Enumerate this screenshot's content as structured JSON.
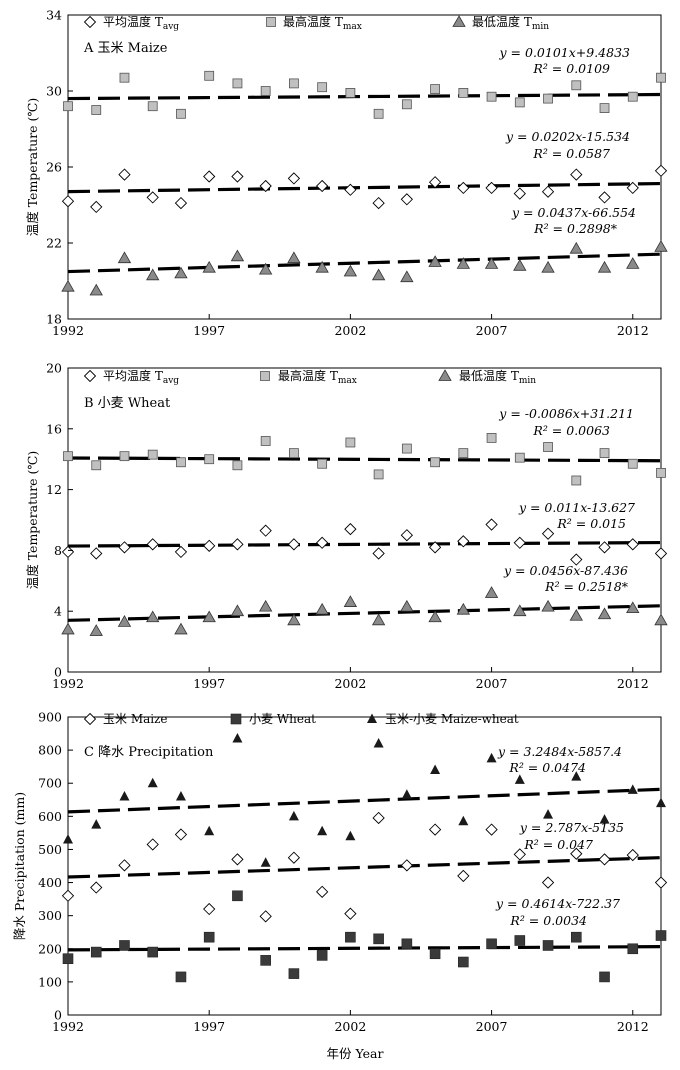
{
  "x_axis_title": "年份 Year",
  "panels": [
    {
      "label": "A  玉米 Maize",
      "ylabel": "温度 Temperature (℃)",
      "ylim": [
        18,
        34
      ],
      "yticks": [
        18,
        22,
        26,
        30,
        34
      ],
      "xlim": [
        1992,
        2013
      ],
      "xticks": [
        1992,
        1997,
        2002,
        2007,
        2012
      ],
      "legend": [
        {
          "text": "平均温度 T",
          "sub": "avg",
          "marker": "diamond"
        },
        {
          "text": "最高温度 T",
          "sub": "max",
          "marker": "square"
        },
        {
          "text": "最低温度 T",
          "sub": "min",
          "marker": "triangle"
        }
      ],
      "equations": [
        {
          "eq": "y = 0.0101x+9.4833",
          "r2": "R² = 0.0109"
        },
        {
          "eq": "y = 0.0202x-15.534",
          "r2": "R² = 0.0587"
        },
        {
          "eq": "y = 0.0437x-66.554",
          "r2": "R² = 0.2898*"
        }
      ]
    },
    {
      "label": "B  小麦 Wheat",
      "ylabel": "温度 Temperature (℃)",
      "ylim": [
        0,
        20
      ],
      "yticks": [
        0,
        4,
        8,
        12,
        16,
        20
      ],
      "xlim": [
        1992,
        2013
      ],
      "xticks": [
        1992,
        1997,
        2002,
        2007,
        2012
      ],
      "legend": [
        {
          "text": "平均温度 T",
          "sub": "avg",
          "marker": "diamond"
        },
        {
          "text": "最高温度 T",
          "sub": "max",
          "marker": "square"
        },
        {
          "text": "最低温度 T",
          "sub": "min",
          "marker": "triangle"
        }
      ],
      "equations": [
        {
          "eq": "y = -0.0086x+31.211",
          "r2": "R² = 0.0063"
        },
        {
          "eq": "y = 0.011x-13.627",
          "r2": "R² = 0.015"
        },
        {
          "eq": "y = 0.0456x-87.436",
          "r2": "R² = 0.2518*"
        }
      ]
    },
    {
      "label": "C  降水 Precipitation",
      "ylabel": "降水 Precipitation (mm)",
      "ylim": [
        0,
        900
      ],
      "yticks": [
        0,
        100,
        200,
        300,
        400,
        500,
        600,
        700,
        800,
        900
      ],
      "xlim": [
        1992,
        2013
      ],
      "xticks": [
        1992,
        1997,
        2002,
        2007,
        2012
      ],
      "legend": [
        {
          "text": "玉米 Maize",
          "sub": "",
          "marker": "diamond"
        },
        {
          "text": "小麦 Wheat",
          "sub": "",
          "marker": "darksquare"
        },
        {
          "text": "玉米-小麦 Maize-wheat",
          "sub": "",
          "marker": "darktriangle"
        }
      ],
      "equations": [
        {
          "eq": "y = 3.2484x-5857.4",
          "r2": "R² = 0.0474"
        },
        {
          "eq": "y = 2.787x-5135",
          "r2": "R² = 0.047"
        },
        {
          "eq": "y = 0.4614x-722.37",
          "r2": "R² = 0.0034"
        }
      ]
    }
  ],
  "chart_data": [
    {
      "type": "scatter",
      "title": "A  玉米 Maize",
      "xlabel": "",
      "ylabel": "温度 Temperature (℃)",
      "xlim": [
        1992,
        2013
      ],
      "ylim": [
        18,
        34
      ],
      "x": [
        1992,
        1993,
        1994,
        1995,
        1996,
        1997,
        1998,
        1999,
        2000,
        2001,
        2002,
        2003,
        2004,
        2005,
        2006,
        2007,
        2008,
        2009,
        2010,
        2011,
        2012,
        2013
      ],
      "series": [
        {
          "name": "最高温度 Tmax",
          "marker": "square",
          "values": [
            29.2,
            29.0,
            30.7,
            29.2,
            28.8,
            30.8,
            30.4,
            30.0,
            30.4,
            30.2,
            29.9,
            28.8,
            29.3,
            30.1,
            29.9,
            29.7,
            29.4,
            29.6,
            30.3,
            29.1,
            29.7,
            30.7
          ],
          "trend": [
            9.4833,
            0.0101
          ]
        },
        {
          "name": "平均温度 Tavg",
          "marker": "diamond",
          "values": [
            24.2,
            23.9,
            25.6,
            24.4,
            24.1,
            25.5,
            25.5,
            25.0,
            25.4,
            25.0,
            24.8,
            24.1,
            24.3,
            25.2,
            24.9,
            24.9,
            24.6,
            24.7,
            25.6,
            24.4,
            24.9,
            25.8
          ],
          "trend": [
            -15.534,
            0.0202
          ]
        },
        {
          "name": "最低温度 Tmin",
          "marker": "triangle",
          "values": [
            19.7,
            19.5,
            21.2,
            20.3,
            20.4,
            20.7,
            21.3,
            20.6,
            21.2,
            20.7,
            20.5,
            20.3,
            20.2,
            21.0,
            20.9,
            20.9,
            20.8,
            20.7,
            21.7,
            20.7,
            20.9,
            21.8
          ],
          "trend": [
            -66.554,
            0.0437
          ]
        }
      ]
    },
    {
      "type": "scatter",
      "title": "B  小麦 Wheat",
      "xlabel": "",
      "ylabel": "温度 Temperature (℃)",
      "xlim": [
        1992,
        2013
      ],
      "ylim": [
        0,
        20
      ],
      "x": [
        1992,
        1993,
        1994,
        1995,
        1996,
        1997,
        1998,
        1999,
        2000,
        2001,
        2002,
        2003,
        2004,
        2005,
        2006,
        2007,
        2008,
        2009,
        2010,
        2011,
        2012,
        2013
      ],
      "series": [
        {
          "name": "最高温度 Tmax",
          "marker": "square",
          "values": [
            14.2,
            13.6,
            14.2,
            14.3,
            13.8,
            14.0,
            13.6,
            15.2,
            14.4,
            13.7,
            15.1,
            13.0,
            14.7,
            13.8,
            14.4,
            15.4,
            14.1,
            14.8,
            12.6,
            14.4,
            13.7,
            13.1
          ],
          "trend": [
            31.211,
            -0.0086
          ]
        },
        {
          "name": "平均温度 Tavg",
          "marker": "diamond",
          "values": [
            7.9,
            7.8,
            8.2,
            8.4,
            7.9,
            8.3,
            8.4,
            9.3,
            8.4,
            8.5,
            9.4,
            7.8,
            9.0,
            8.2,
            8.6,
            9.7,
            8.5,
            9.1,
            7.4,
            8.2,
            8.4,
            7.8
          ],
          "trend": [
            -13.627,
            0.011
          ]
        },
        {
          "name": "最低温度 Tmin",
          "marker": "triangle",
          "values": [
            2.8,
            2.7,
            3.3,
            3.6,
            2.8,
            3.6,
            4.0,
            4.3,
            3.4,
            4.1,
            4.6,
            3.4,
            4.3,
            3.6,
            4.1,
            5.2,
            4.0,
            4.3,
            3.7,
            3.8,
            4.2,
            3.4
          ],
          "trend": [
            -87.436,
            0.0456
          ]
        }
      ]
    },
    {
      "type": "scatter",
      "title": "C  降水 Precipitation",
      "xlabel": "年份 Year",
      "ylabel": "降水 Precipitation (mm)",
      "xlim": [
        1992,
        2013
      ],
      "ylim": [
        0,
        900
      ],
      "x": [
        1992,
        1993,
        1994,
        1995,
        1996,
        1997,
        1998,
        1999,
        2000,
        2001,
        2002,
        2003,
        2004,
        2005,
        2006,
        2007,
        2008,
        2009,
        2010,
        2011,
        2012,
        2013
      ],
      "series": [
        {
          "name": "玉米 Maize",
          "marker": "diamond",
          "values": [
            360,
            385,
            452,
            515,
            545,
            320,
            470,
            298,
            475,
            372,
            306,
            595,
            452,
            560,
            420,
            560,
            485,
            400,
            487,
            470,
            483,
            400
          ],
          "trend": [
            -5135,
            2.787
          ]
        },
        {
          "name": "小麦 Wheat",
          "marker": "darksquare",
          "values": [
            170,
            190,
            210,
            190,
            115,
            235,
            360,
            165,
            125,
            180,
            235,
            230,
            215,
            185,
            160,
            215,
            225,
            210,
            235,
            115,
            200,
            240
          ],
          "trend": [
            -722.37,
            0.4614
          ]
        },
        {
          "name": "玉米-小麦 Maize-wheat",
          "marker": "darktriangle",
          "values": [
            530,
            575,
            660,
            700,
            660,
            555,
            835,
            460,
            600,
            555,
            540,
            820,
            665,
            740,
            585,
            775,
            710,
            605,
            720,
            590,
            680,
            640
          ],
          "trend": [
            -5857.4,
            3.2484
          ]
        }
      ]
    }
  ]
}
